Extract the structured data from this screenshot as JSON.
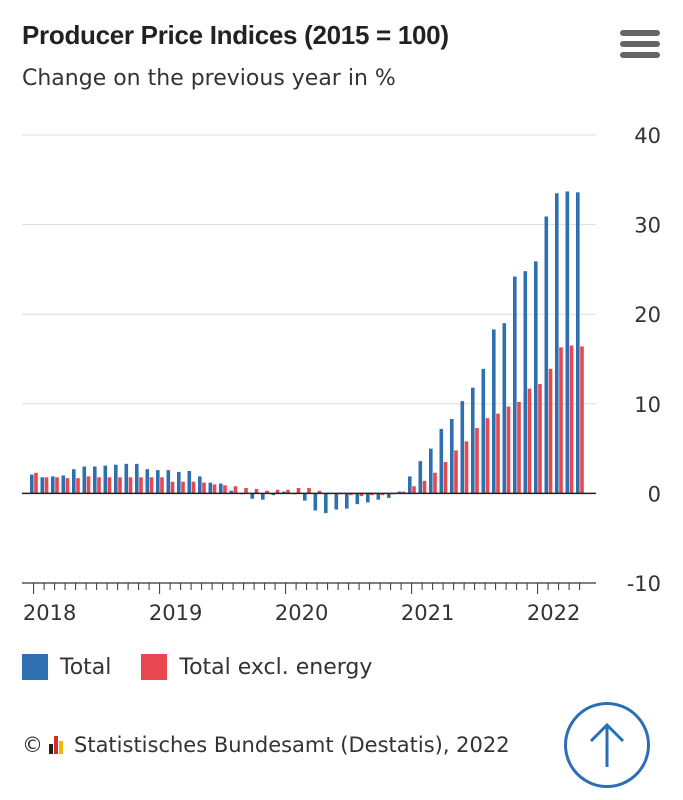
{
  "title": "Producer Price Indices (2015 = 100)",
  "subtitle": "Change on the previous year in %",
  "menu_icon": "hamburger-menu-icon",
  "legend": [
    {
      "label": "Total",
      "color": "#2e6fb0"
    },
    {
      "label": "Total excl. energy",
      "color": "#e8474f"
    }
  ],
  "credit": {
    "prefix": "©",
    "text": "Statistisches Bundesamt (Destatis), 2022",
    "logo_icon": "destatis-logo-icon"
  },
  "scroll_top_icon": "arrow-up-icon",
  "chart_data": {
    "type": "bar",
    "title": "Producer Price Indices (2015 = 100)",
    "ylabel": "Change on the previous year in %",
    "xlabel": "",
    "ylim": [
      -10,
      40
    ],
    "yticks": [
      40,
      30,
      20,
      10,
      0,
      -10
    ],
    "x_tick_labels": [
      "2018",
      "2019",
      "2020",
      "2021",
      "2022"
    ],
    "categories": [
      "2018-01",
      "2018-02",
      "2018-03",
      "2018-04",
      "2018-05",
      "2018-06",
      "2018-07",
      "2018-08",
      "2018-09",
      "2018-10",
      "2018-11",
      "2018-12",
      "2019-01",
      "2019-02",
      "2019-03",
      "2019-04",
      "2019-05",
      "2019-06",
      "2019-07",
      "2019-08",
      "2019-09",
      "2019-10",
      "2019-11",
      "2019-12",
      "2020-01",
      "2020-02",
      "2020-03",
      "2020-04",
      "2020-05",
      "2020-06",
      "2020-07",
      "2020-08",
      "2020-09",
      "2020-10",
      "2020-11",
      "2020-12",
      "2021-01",
      "2021-02",
      "2021-03",
      "2021-04",
      "2021-05",
      "2021-06",
      "2021-07",
      "2021-08",
      "2021-09",
      "2021-10",
      "2021-11",
      "2021-12",
      "2022-01",
      "2022-02",
      "2022-03",
      "2022-04",
      "2022-05"
    ],
    "series": [
      {
        "name": "Total",
        "color": "#2e6fb0",
        "values": [
          2.1,
          1.8,
          1.9,
          2.0,
          2.7,
          3.0,
          3.0,
          3.1,
          3.2,
          3.3,
          3.3,
          2.7,
          2.6,
          2.6,
          2.4,
          2.5,
          1.9,
          1.2,
          1.1,
          0.3,
          -0.1,
          -0.6,
          -0.7,
          -0.2,
          0.2,
          -0.1,
          -0.8,
          -1.9,
          -2.2,
          -1.8,
          -1.7,
          -1.2,
          -1.0,
          -0.7,
          -0.5,
          0.2,
          1.9,
          3.6,
          5.0,
          7.2,
          8.3,
          10.3,
          11.8,
          13.9,
          18.3,
          19.0,
          24.2,
          24.8,
          25.9,
          30.9,
          33.5,
          33.7,
          33.6
        ]
      },
      {
        "name": "Total excl. energy",
        "color": "#e8474f",
        "values": [
          2.3,
          1.8,
          1.8,
          1.7,
          1.7,
          1.9,
          1.8,
          1.8,
          1.8,
          1.8,
          1.8,
          1.8,
          1.8,
          1.3,
          1.3,
          1.3,
          1.2,
          1.0,
          0.9,
          0.8,
          0.6,
          0.5,
          0.3,
          0.4,
          0.4,
          0.6,
          0.6,
          0.3,
          0.0,
          -0.1,
          -0.2,
          -0.3,
          -0.2,
          -0.2,
          -0.1,
          0.2,
          0.8,
          1.4,
          2.3,
          3.5,
          4.8,
          5.8,
          7.3,
          8.4,
          8.9,
          9.7,
          10.2,
          11.7,
          12.2,
          13.9,
          16.3,
          16.5,
          16.4
        ]
      }
    ]
  }
}
